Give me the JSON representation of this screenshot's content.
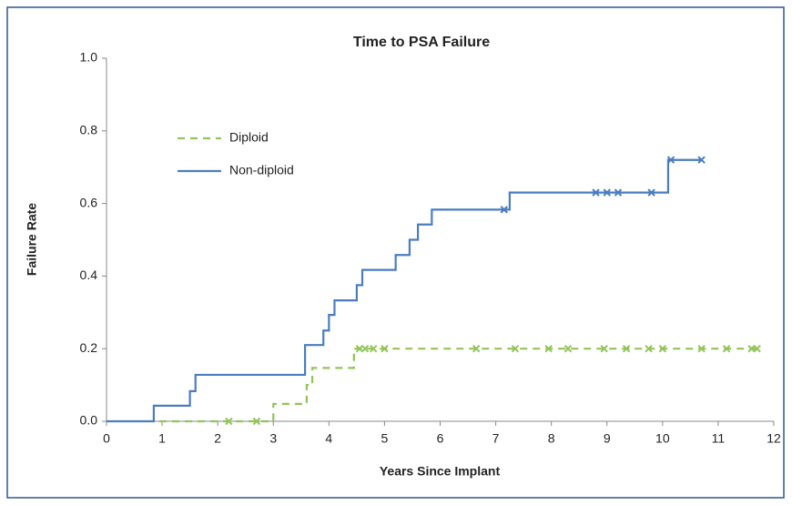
{
  "chart_data": {
    "type": "step",
    "title": "Time to PSA Failure",
    "x_label": "Years Since Implant",
    "y_label": "Failure Rate",
    "xlim": [
      0,
      12
    ],
    "ylim": [
      0,
      1
    ],
    "xticks": [
      0,
      1,
      2,
      3,
      4,
      5,
      6,
      7,
      8,
      9,
      10,
      11,
      12
    ],
    "yticks": [
      {
        "value": 0,
        "label": "0.0"
      },
      {
        "value": 0.2,
        "label": "0.2"
      },
      {
        "value": 0.4,
        "label": "0.4"
      },
      {
        "value": 0.6,
        "label": "0.6"
      },
      {
        "value": 0.8,
        "label": "0.8"
      },
      {
        "value": 1,
        "label": "1.0"
      }
    ],
    "series": [
      {
        "name": "Diploid",
        "color": "#92c45a",
        "dashed": true,
        "x": [
          0.95,
          3.0,
          3.6,
          3.7,
          4.45,
          11.7
        ],
        "values": [
          0,
          0.048,
          0.1,
          0.147,
          0.2,
          0.2
        ],
        "censored": {
          "x": [
            2.2,
            2.7,
            4.55,
            4.65,
            4.8,
            5.0,
            6.65,
            7.35,
            7.95,
            8.3,
            8.95,
            9.35,
            9.75,
            10.0,
            10.7,
            11.15,
            11.6,
            11.7
          ],
          "values": [
            0,
            0,
            0.2,
            0.2,
            0.2,
            0.2,
            0.2,
            0.2,
            0.2,
            0.2,
            0.2,
            0.2,
            0.2,
            0.2,
            0.2,
            0.2,
            0.2,
            0.2
          ]
        }
      },
      {
        "name": "Non-diploid",
        "color": "#4a7dc0",
        "dashed": false,
        "x": [
          0,
          0.85,
          1.5,
          1.6,
          3.57,
          3.9,
          4.0,
          4.1,
          4.5,
          4.6,
          5.2,
          5.45,
          5.6,
          5.85,
          7.25,
          10.1,
          10.7
        ],
        "values": [
          0,
          0.043,
          0.083,
          0.128,
          0.21,
          0.25,
          0.293,
          0.333,
          0.375,
          0.417,
          0.458,
          0.5,
          0.542,
          0.583,
          0.63,
          0.72,
          0.72
        ],
        "censored": {
          "x": [
            7.15,
            8.8,
            9.0,
            9.2,
            9.8,
            10.15,
            10.7
          ],
          "values": [
            0.583,
            0.63,
            0.63,
            0.63,
            0.63,
            0.72,
            0.72
          ]
        }
      }
    ]
  }
}
